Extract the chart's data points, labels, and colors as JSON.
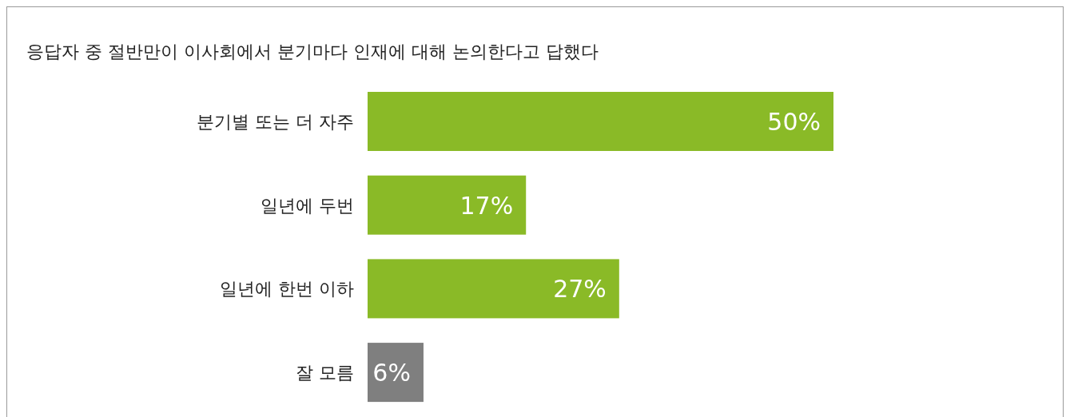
{
  "chart_data": {
    "type": "bar",
    "orientation": "horizontal",
    "title": "응답자 중 절반만이 이사회에서 분기마다 인재에 대해 논의한다고 답했다",
    "categories": [
      "분기별 또는 더 자주",
      "일년에 두번",
      "일년에 한번 이하",
      "잘 모름"
    ],
    "values": [
      50,
      17,
      27,
      6
    ],
    "colors": [
      "#8aba27",
      "#8aba27",
      "#8aba27",
      "#7f7f7f"
    ],
    "value_labels": [
      "50%",
      "17%",
      "27%",
      "6%"
    ]
  }
}
